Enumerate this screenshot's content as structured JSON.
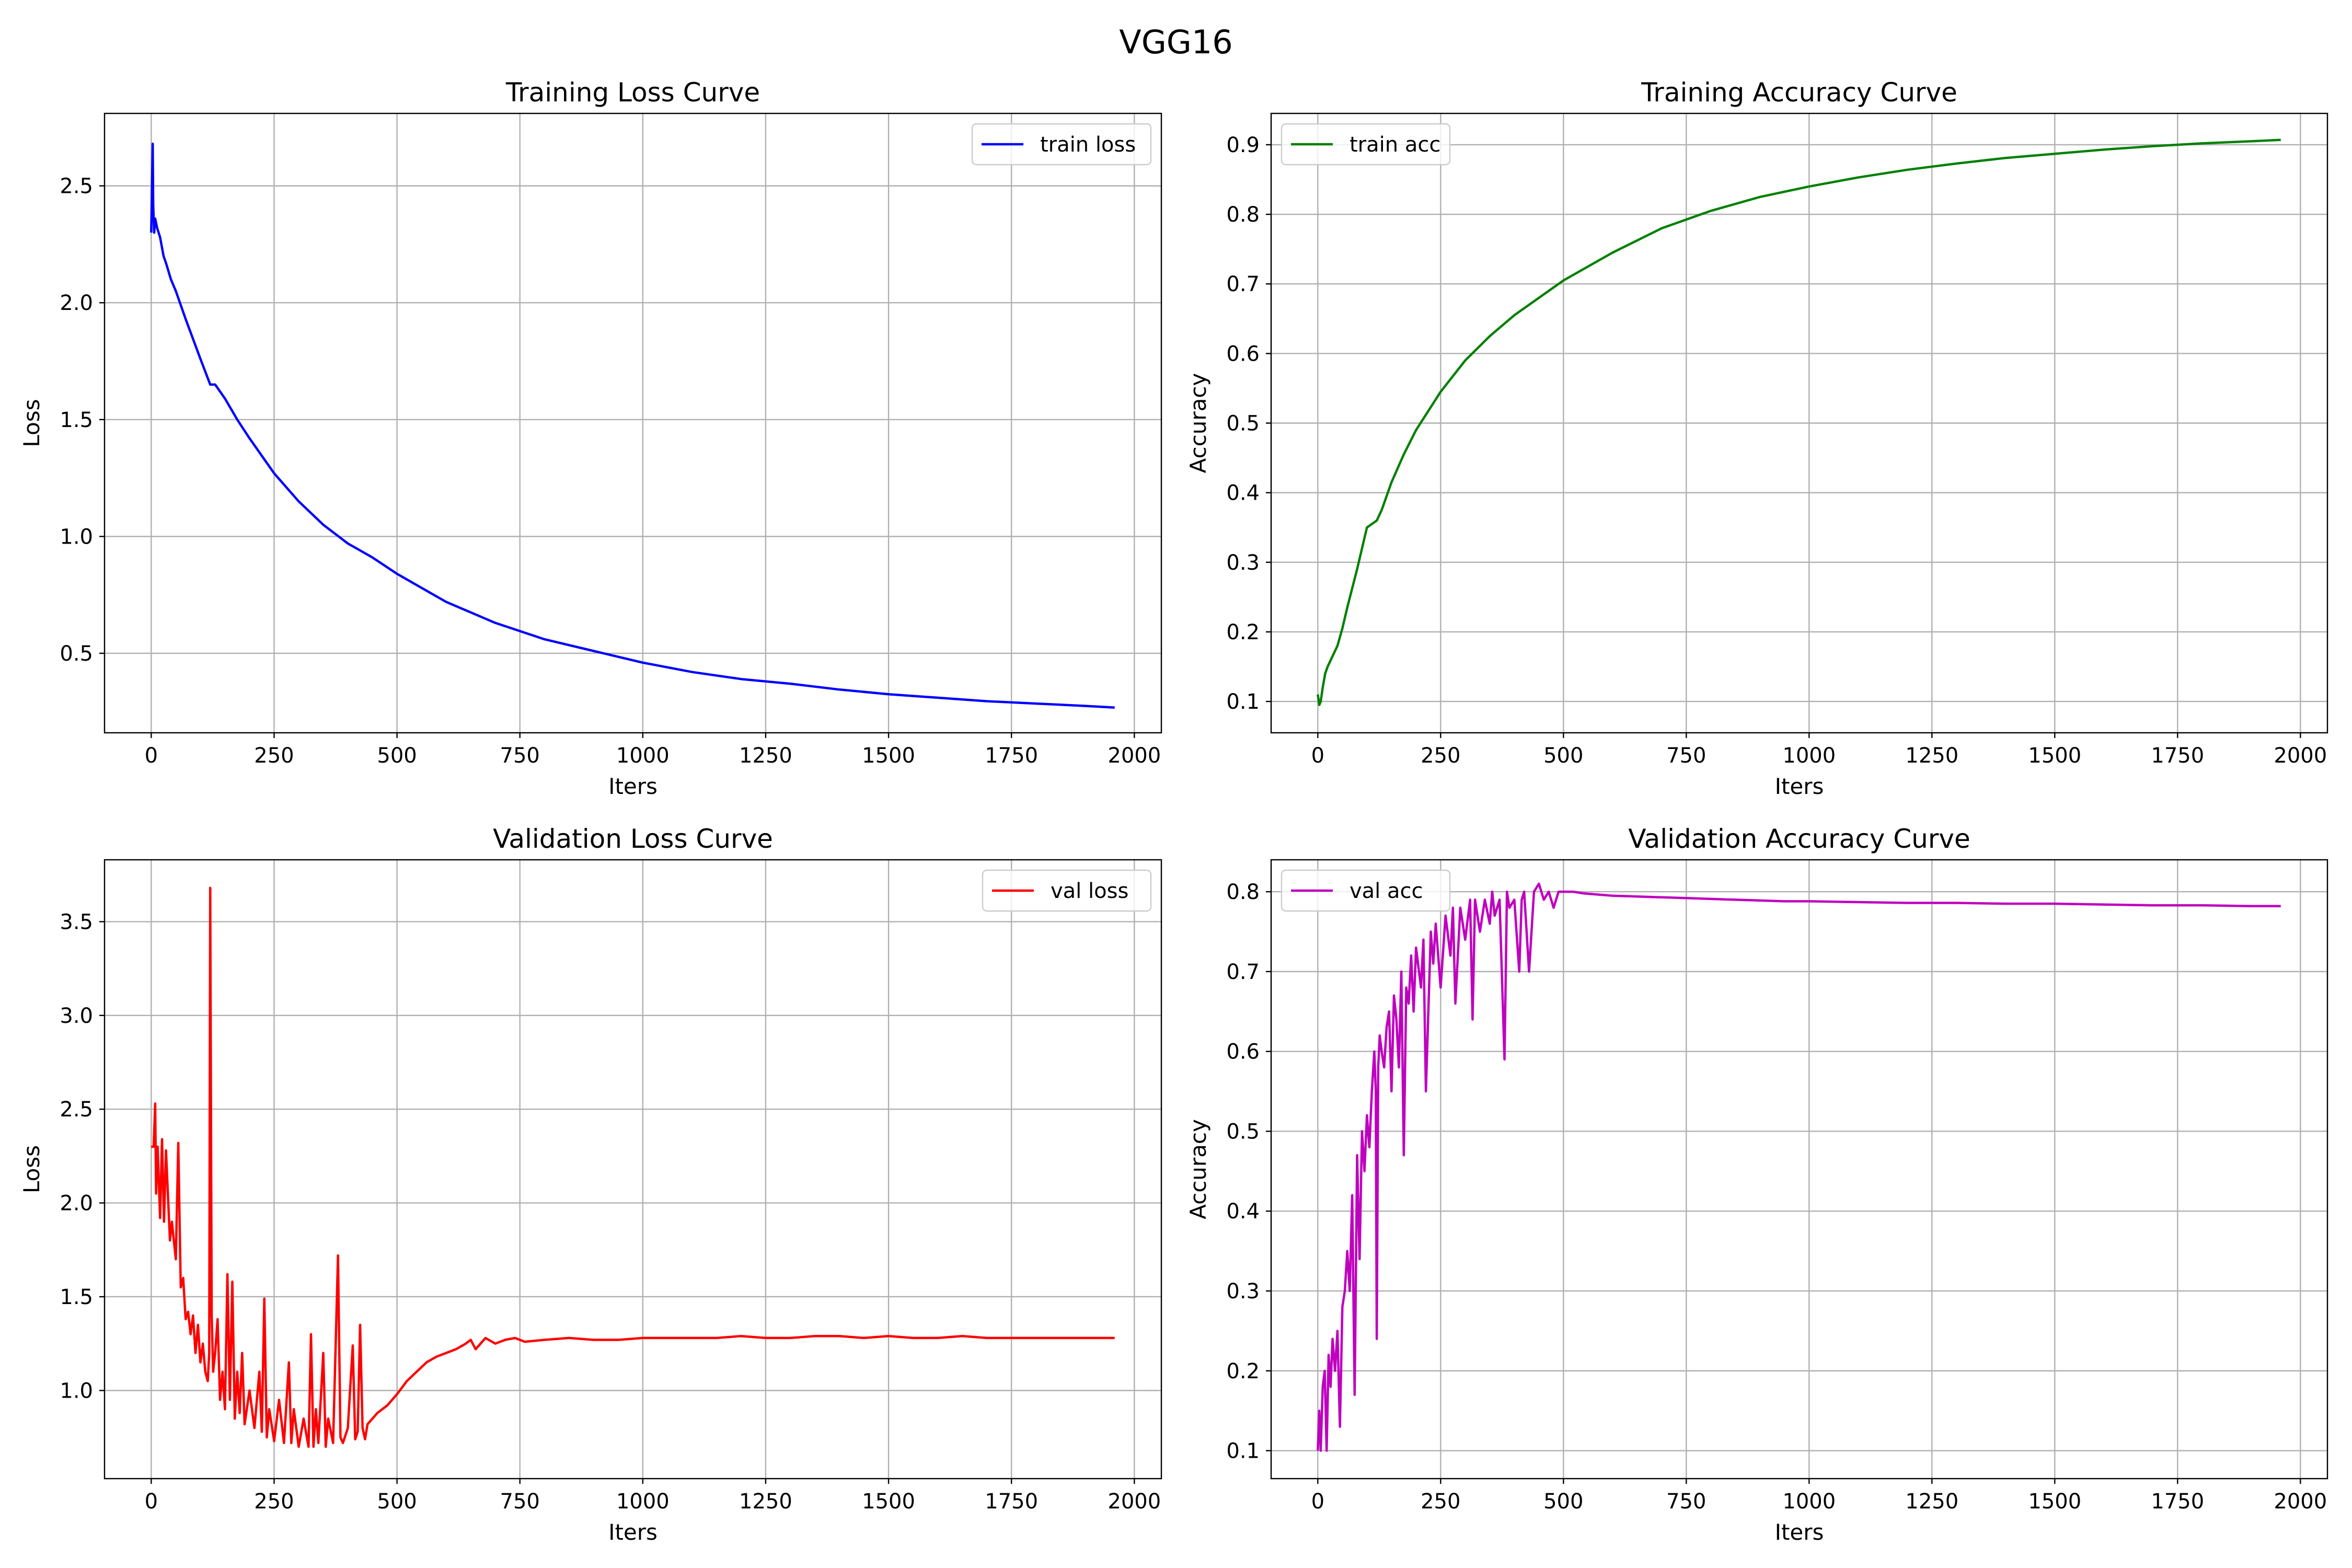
{
  "figure": {
    "suptitle": "VGG16"
  },
  "chart_data": [
    {
      "type": "line",
      "title": "Training Loss Curve",
      "xlabel": "Iters",
      "ylabel": "Loss",
      "xlim": [
        -95,
        2055
      ],
      "ylim": [
        0.16,
        2.81
      ],
      "xticks": [
        0,
        250,
        500,
        750,
        1000,
        1250,
        1500,
        1750,
        2000
      ],
      "xtick_labels": [
        "0",
        "250",
        "500",
        "750",
        "1000",
        "1250",
        "1500",
        "1750",
        "2000"
      ],
      "yticks": [
        0.5,
        1.0,
        1.5,
        2.0,
        2.5
      ],
      "ytick_labels": [
        "0.5",
        "1.0",
        "1.5",
        "2.0",
        "2.5"
      ],
      "grid": true,
      "legend_position": "upper-right",
      "color": "#0000ff",
      "series": [
        {
          "name": "train loss",
          "x": [
            0,
            3,
            4,
            6,
            8,
            12,
            18,
            25,
            30,
            40,
            50,
            70,
            100,
            120,
            130,
            150,
            175,
            200,
            250,
            300,
            350,
            400,
            450,
            500,
            600,
            700,
            800,
            900,
            1000,
            1100,
            1200,
            1300,
            1400,
            1500,
            1600,
            1700,
            1800,
            1900,
            1960
          ],
          "y": [
            2.3,
            2.68,
            2.42,
            2.3,
            2.36,
            2.32,
            2.28,
            2.2,
            2.17,
            2.1,
            2.05,
            1.93,
            1.76,
            1.65,
            1.65,
            1.59,
            1.5,
            1.42,
            1.27,
            1.15,
            1.05,
            0.97,
            0.91,
            0.84,
            0.72,
            0.63,
            0.56,
            0.51,
            0.46,
            0.42,
            0.39,
            0.37,
            0.345,
            0.325,
            0.31,
            0.295,
            0.285,
            0.275,
            0.268
          ]
        }
      ]
    },
    {
      "type": "line",
      "title": "Training Accuracy Curve",
      "xlabel": "Iters",
      "ylabel": "Accuracy",
      "xlim": [
        -95,
        2055
      ],
      "ylim": [
        0.055,
        0.945
      ],
      "xticks": [
        0,
        250,
        500,
        750,
        1000,
        1250,
        1500,
        1750,
        2000
      ],
      "xtick_labels": [
        "0",
        "250",
        "500",
        "750",
        "1000",
        "1250",
        "1500",
        "1750",
        "2000"
      ],
      "yticks": [
        0.1,
        0.2,
        0.3,
        0.4,
        0.5,
        0.6,
        0.7,
        0.8,
        0.9
      ],
      "ytick_labels": [
        "0.1",
        "0.2",
        "0.3",
        "0.4",
        "0.5",
        "0.6",
        "0.7",
        "0.8",
        "0.9"
      ],
      "grid": true,
      "legend_position": "upper-left",
      "color": "#008000",
      "series": [
        {
          "name": "train acc",
          "x": [
            0,
            3,
            6,
            10,
            15,
            20,
            30,
            40,
            50,
            60,
            80,
            100,
            120,
            130,
            150,
            175,
            200,
            250,
            300,
            350,
            400,
            450,
            500,
            600,
            700,
            800,
            900,
            1000,
            1100,
            1200,
            1300,
            1400,
            1500,
            1600,
            1700,
            1800,
            1900,
            1960
          ],
          "y": [
            0.11,
            0.095,
            0.1,
            0.12,
            0.14,
            0.15,
            0.165,
            0.18,
            0.205,
            0.235,
            0.29,
            0.35,
            0.36,
            0.375,
            0.415,
            0.455,
            0.49,
            0.545,
            0.59,
            0.625,
            0.655,
            0.68,
            0.705,
            0.745,
            0.78,
            0.805,
            0.825,
            0.84,
            0.853,
            0.864,
            0.873,
            0.881,
            0.887,
            0.893,
            0.898,
            0.902,
            0.905,
            0.907
          ]
        }
      ]
    },
    {
      "type": "line",
      "title": "Validation Loss Curve",
      "xlabel": "Iters",
      "ylabel": "Loss",
      "xlim": [
        -95,
        2055
      ],
      "ylim": [
        0.53,
        3.83
      ],
      "xticks": [
        0,
        250,
        500,
        750,
        1000,
        1250,
        1500,
        1750,
        2000
      ],
      "xtick_labels": [
        "0",
        "250",
        "500",
        "750",
        "1000",
        "1250",
        "1500",
        "1750",
        "2000"
      ],
      "yticks": [
        1.0,
        1.5,
        2.0,
        2.5,
        3.0,
        3.5
      ],
      "ytick_labels": [
        "1.0",
        "1.5",
        "2.0",
        "2.5",
        "3.0",
        "3.5"
      ],
      "grid": true,
      "legend_position": "upper-right",
      "color": "#ff0000",
      "series": [
        {
          "name": "val loss",
          "x": [
            0,
            5,
            8,
            10,
            13,
            18,
            22,
            26,
            30,
            38,
            42,
            50,
            55,
            60,
            65,
            70,
            75,
            80,
            85,
            90,
            95,
            100,
            105,
            110,
            115,
            118,
            120,
            123,
            126,
            130,
            135,
            140,
            145,
            150,
            155,
            160,
            165,
            170,
            175,
            180,
            185,
            190,
            200,
            210,
            220,
            225,
            230,
            235,
            240,
            250,
            260,
            270,
            280,
            285,
            290,
            300,
            310,
            320,
            325,
            330,
            335,
            340,
            350,
            355,
            360,
            370,
            380,
            385,
            390,
            400,
            410,
            415,
            420,
            425,
            430,
            435,
            440,
            450,
            460,
            470,
            480,
            490,
            500,
            520,
            540,
            560,
            580,
            600,
            620,
            640,
            650,
            660,
            680,
            700,
            720,
            740,
            760,
            800,
            850,
            900,
            950,
            1000,
            1050,
            1100,
            1150,
            1200,
            1250,
            1300,
            1350,
            1400,
            1450,
            1500,
            1550,
            1600,
            1650,
            1700,
            1750,
            1800,
            1850,
            1900,
            1960
          ],
          "y": [
            2.3,
            2.3,
            2.53,
            2.05,
            2.3,
            1.92,
            2.34,
            1.9,
            2.28,
            1.8,
            1.9,
            1.7,
            2.32,
            1.55,
            1.6,
            1.38,
            1.42,
            1.3,
            1.4,
            1.2,
            1.35,
            1.15,
            1.25,
            1.1,
            1.05,
            1.2,
            3.68,
            1.4,
            1.1,
            1.2,
            1.38,
            0.95,
            1.1,
            0.9,
            1.62,
            0.95,
            1.58,
            0.85,
            1.1,
            0.88,
            1.2,
            0.82,
            1.0,
            0.8,
            1.1,
            0.78,
            1.49,
            0.75,
            0.9,
            0.73,
            0.95,
            0.72,
            1.15,
            0.72,
            0.9,
            0.7,
            0.85,
            0.7,
            1.3,
            0.7,
            0.9,
            0.72,
            1.2,
            0.7,
            0.85,
            0.72,
            1.72,
            0.75,
            0.72,
            0.8,
            1.24,
            0.74,
            0.78,
            1.35,
            0.8,
            0.74,
            0.82,
            0.85,
            0.88,
            0.9,
            0.92,
            0.95,
            0.98,
            1.05,
            1.1,
            1.15,
            1.18,
            1.2,
            1.22,
            1.25,
            1.27,
            1.22,
            1.28,
            1.25,
            1.27,
            1.28,
            1.26,
            1.27,
            1.28,
            1.27,
            1.27,
            1.28,
            1.28,
            1.28,
            1.28,
            1.29,
            1.28,
            1.28,
            1.29,
            1.29,
            1.28,
            1.29,
            1.28,
            1.28,
            1.29,
            1.28,
            1.28,
            1.28,
            1.28,
            1.28,
            1.28
          ]
        }
      ]
    },
    {
      "type": "line",
      "title": "Validation Accuracy Curve",
      "xlabel": "Iters",
      "ylabel": "Accuracy",
      "xlim": [
        -95,
        2055
      ],
      "ylim": [
        0.065,
        0.84
      ],
      "xticks": [
        0,
        250,
        500,
        750,
        1000,
        1250,
        1500,
        1750,
        2000
      ],
      "xtick_labels": [
        "0",
        "250",
        "500",
        "750",
        "1000",
        "1250",
        "1500",
        "1750",
        "2000"
      ],
      "yticks": [
        0.1,
        0.2,
        0.3,
        0.4,
        0.5,
        0.6,
        0.7,
        0.8
      ],
      "ytick_labels": [
        "0.1",
        "0.2",
        "0.3",
        "0.4",
        "0.5",
        "0.6",
        "0.7",
        "0.8"
      ],
      "grid": true,
      "legend_position": "upper-left",
      "color": "#bf00bf",
      "series": [
        {
          "name": "val acc",
          "x": [
            0,
            3,
            6,
            10,
            14,
            18,
            22,
            26,
            30,
            35,
            40,
            45,
            50,
            55,
            60,
            65,
            70,
            75,
            80,
            85,
            90,
            95,
            100,
            105,
            110,
            115,
            118,
            120,
            123,
            126,
            130,
            135,
            140,
            145,
            150,
            155,
            160,
            165,
            170,
            175,
            180,
            185,
            190,
            195,
            200,
            210,
            215,
            220,
            230,
            235,
            240,
            250,
            260,
            270,
            275,
            280,
            290,
            300,
            310,
            315,
            320,
            330,
            340,
            350,
            355,
            360,
            370,
            380,
            385,
            390,
            400,
            410,
            415,
            420,
            430,
            440,
            450,
            460,
            470,
            480,
            490,
            500,
            520,
            540,
            560,
            580,
            600,
            650,
            700,
            750,
            800,
            850,
            900,
            950,
            1000,
            1100,
            1200,
            1300,
            1400,
            1500,
            1600,
            1700,
            1800,
            1900,
            1960
          ],
          "y": [
            0.1,
            0.15,
            0.1,
            0.18,
            0.2,
            0.1,
            0.22,
            0.18,
            0.24,
            0.2,
            0.25,
            0.13,
            0.28,
            0.3,
            0.35,
            0.3,
            0.42,
            0.17,
            0.47,
            0.34,
            0.5,
            0.45,
            0.52,
            0.48,
            0.55,
            0.6,
            0.55,
            0.24,
            0.58,
            0.62,
            0.6,
            0.58,
            0.63,
            0.65,
            0.55,
            0.67,
            0.64,
            0.58,
            0.7,
            0.47,
            0.68,
            0.66,
            0.72,
            0.65,
            0.73,
            0.68,
            0.74,
            0.55,
            0.75,
            0.71,
            0.76,
            0.68,
            0.77,
            0.72,
            0.78,
            0.66,
            0.78,
            0.74,
            0.79,
            0.64,
            0.79,
            0.75,
            0.79,
            0.76,
            0.8,
            0.77,
            0.79,
            0.59,
            0.8,
            0.78,
            0.79,
            0.7,
            0.79,
            0.8,
            0.7,
            0.8,
            0.81,
            0.79,
            0.8,
            0.78,
            0.8,
            0.8,
            0.8,
            0.798,
            0.797,
            0.796,
            0.795,
            0.794,
            0.793,
            0.792,
            0.791,
            0.79,
            0.789,
            0.788,
            0.788,
            0.787,
            0.786,
            0.786,
            0.785,
            0.785,
            0.784,
            0.783,
            0.783,
            0.782,
            0.782
          ]
        }
      ]
    }
  ]
}
